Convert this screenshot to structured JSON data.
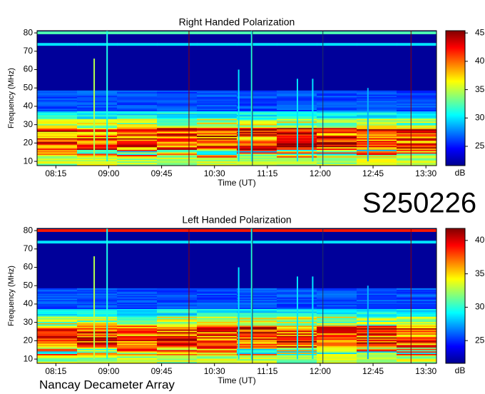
{
  "chart_data": [
    {
      "type": "spectrogram",
      "title": "Right Handed Polarization",
      "x_label": "Time (UT)",
      "y_label": "Frequency (MHz)",
      "xlim": [
        479,
        819
      ],
      "xticks": [
        {
          "value": 495,
          "label": "08:15"
        },
        {
          "value": 540,
          "label": "09:00"
        },
        {
          "value": 585,
          "label": "09:45"
        },
        {
          "value": 630,
          "label": "10:30"
        },
        {
          "value": 675,
          "label": "11:15"
        },
        {
          "value": 720,
          "label": "12:00"
        },
        {
          "value": 765,
          "label": "12:45"
        },
        {
          "value": 810,
          "label": "13:30"
        }
      ],
      "ylim": [
        7.7,
        81.2
      ],
      "yticks": [
        10,
        20,
        30,
        40,
        50,
        60,
        70,
        80
      ],
      "colorbar": {
        "label": "dB",
        "lim": [
          21.6,
          45.4
        ],
        "ticks": [
          25,
          30,
          35,
          40,
          45
        ]
      }
    },
    {
      "type": "spectrogram",
      "title": "Left Handed Polarization",
      "x_label": "Time (UT)",
      "y_label": "Frequency (MHz)",
      "xlim": [
        479,
        819
      ],
      "xticks": [
        {
          "value": 495,
          "label": "08:15"
        },
        {
          "value": 540,
          "label": "09:00"
        },
        {
          "value": 585,
          "label": "09:45"
        },
        {
          "value": 630,
          "label": "10:30"
        },
        {
          "value": 675,
          "label": "11:15"
        },
        {
          "value": 720,
          "label": "12:00"
        },
        {
          "value": 765,
          "label": "12:45"
        },
        {
          "value": 810,
          "label": "13:30"
        }
      ],
      "ylim": [
        7.7,
        81.2
      ],
      "yticks": [
        10,
        20,
        30,
        40,
        50,
        60,
        70,
        80
      ],
      "colorbar": {
        "label": "dB",
        "lim": [
          21.6,
          41.8
        ],
        "ticks": [
          25,
          30,
          35,
          40
        ]
      }
    }
  ],
  "date_label": "S250226",
  "footer": "Nancay Decameter Array"
}
